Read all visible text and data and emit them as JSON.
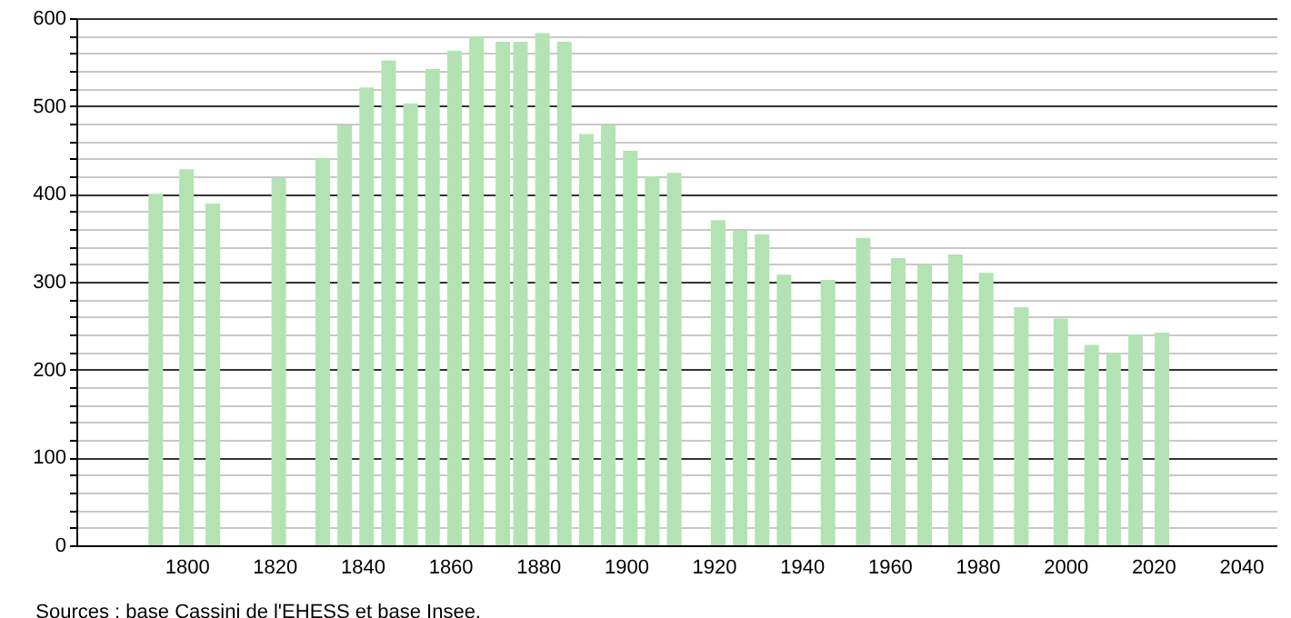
{
  "chart_data": {
    "type": "bar",
    "x": [
      1793,
      1800,
      1806,
      1821,
      1831,
      1836,
      1841,
      1846,
      1851,
      1856,
      1861,
      1866,
      1872,
      1876,
      1881,
      1886,
      1891,
      1896,
      1901,
      1906,
      1911,
      1921,
      1926,
      1931,
      1936,
      1946,
      1954,
      1962,
      1968,
      1975,
      1982,
      1990,
      1999,
      2006,
      2011,
      2016,
      2021,
      2022
    ],
    "values": [
      400,
      428,
      389,
      418,
      441,
      478,
      521,
      552,
      503,
      542,
      563,
      579,
      573,
      573,
      583,
      573,
      468,
      478,
      449,
      420,
      424,
      370,
      358,
      354,
      308,
      302,
      350,
      327,
      319,
      331,
      310,
      271,
      258,
      228,
      219,
      240,
      null,
      242
    ],
    "color": "#b3e3b3",
    "xlim": [
      1777,
      2046
    ],
    "xticks": [
      1800,
      1820,
      1840,
      1860,
      1880,
      1900,
      1920,
      1940,
      1960,
      1980,
      2000,
      2020,
      2040
    ],
    "ylim": [
      0,
      600
    ],
    "yticks": [
      0,
      {
        "value": 20,
        "label": null
      },
      {
        "value": 40,
        "label": null
      },
      {
        "value": 60,
        "label": null
      },
      {
        "value": 80,
        "label": null
      },
      100,
      {
        "value": 120,
        "label": null
      },
      {
        "value": 140,
        "label": null
      },
      {
        "value": 160,
        "label": null
      },
      {
        "value": 180,
        "label": null
      },
      200,
      {
        "value": 220,
        "label": null
      },
      {
        "value": 240,
        "label": null
      },
      {
        "value": 260,
        "label": null
      },
      {
        "value": 280,
        "label": null
      },
      300,
      {
        "value": 320,
        "label": null
      },
      {
        "value": 340,
        "label": null
      },
      {
        "value": 360,
        "label": null
      },
      {
        "value": 380,
        "label": null
      },
      400,
      {
        "value": 420,
        "label": null
      },
      {
        "value": 440,
        "label": null
      },
      {
        "value": 460,
        "label": null
      },
      {
        "value": 480,
        "label": null
      },
      500,
      {
        "value": 520,
        "label": null
      },
      {
        "value": 540,
        "label": null
      },
      {
        "value": 560,
        "label": null
      },
      {
        "value": 580,
        "label": null
      },
      600
    ],
    "grid": "y",
    "annotations": [
      "Sources : base Cassini de l'EHESS et base Insee."
    ]
  }
}
